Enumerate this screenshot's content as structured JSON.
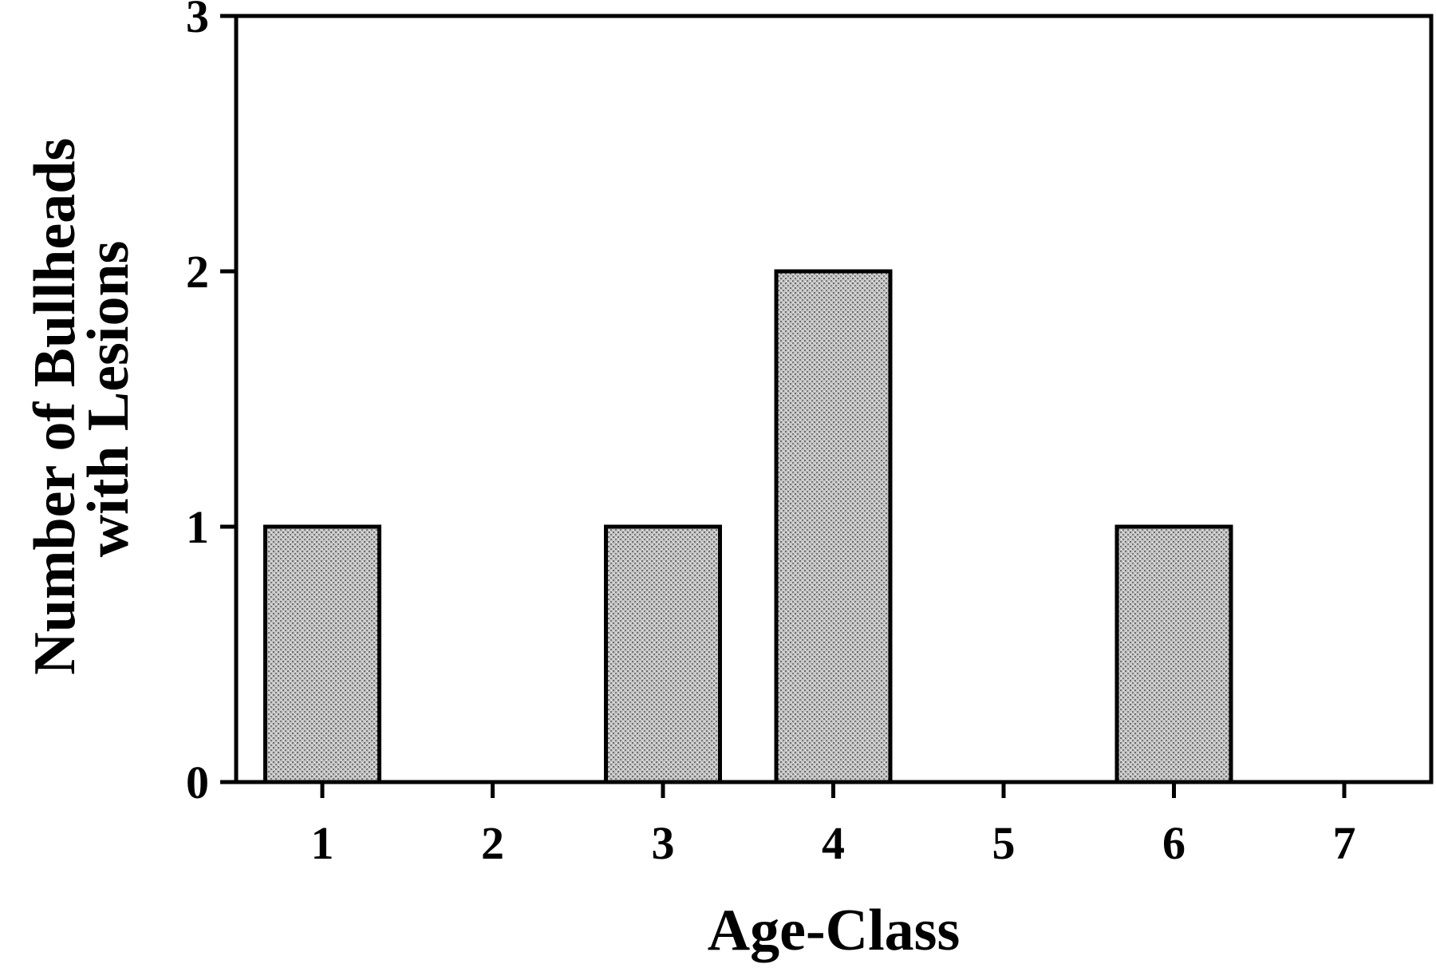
{
  "chart_data": {
    "type": "bar",
    "title": "",
    "xlabel": "Age-Class",
    "ylabel_lines": [
      "Number of Bullheads",
      "with Lesions"
    ],
    "categories": [
      "1",
      "2",
      "3",
      "4",
      "5",
      "6",
      "7"
    ],
    "values": [
      1,
      0,
      1,
      2,
      0,
      1,
      0
    ],
    "ylim": [
      0,
      3
    ],
    "yticks": [
      "0",
      "1",
      "2",
      "3"
    ],
    "grid": false,
    "legend": "none",
    "bar_color": "#b9b9b9",
    "bar_edge_color": "#000000"
  }
}
